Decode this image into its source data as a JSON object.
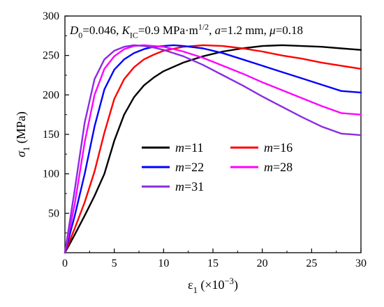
{
  "chart_data": {
    "type": "line",
    "annotation": {
      "parts": [
        {
          "t": "D",
          "style": "italic"
        },
        {
          "t": "0",
          "style": "sub"
        },
        {
          "t": "=0.046, ",
          "style": "normal"
        },
        {
          "t": "K",
          "style": "italic"
        },
        {
          "t": "IC",
          "style": "sub"
        },
        {
          "t": "=0.9 MPa·m",
          "style": "normal"
        },
        {
          "t": "1/2",
          "style": "sup"
        },
        {
          "t": ", ",
          "style": "normal"
        },
        {
          "t": "a",
          "style": "italic"
        },
        {
          "t": "=1.2 mm, ",
          "style": "normal"
        },
        {
          "t": "μ",
          "style": "italic"
        },
        {
          "t": "=0.18",
          "style": "normal"
        }
      ]
    },
    "xlabel": {
      "parts": [
        {
          "t": "ε",
          "style": "normal"
        },
        {
          "t": "1",
          "style": "sub"
        },
        {
          "t": " (×10",
          "style": "normal"
        },
        {
          "t": "−3",
          "style": "sup"
        },
        {
          "t": ")",
          "style": "normal"
        }
      ]
    },
    "ylabel": {
      "parts": [
        {
          "t": "σ",
          "style": "italic"
        },
        {
          "t": "1",
          "style": "sub"
        },
        {
          "t": " (MPa)",
          "style": "normal"
        }
      ]
    },
    "xlim": [
      0,
      30
    ],
    "ylim": [
      0,
      300
    ],
    "xticks": [
      0,
      5,
      10,
      15,
      20,
      25,
      30
    ],
    "yticks": [
      50,
      100,
      150,
      200,
      250,
      300
    ],
    "grid": false,
    "legend_position": "center",
    "series": [
      {
        "name": "m=11",
        "var": "m",
        "val": "=11",
        "color": "#000000",
        "points": [
          [
            0,
            0
          ],
          [
            1,
            23
          ],
          [
            2,
            47
          ],
          [
            3,
            72
          ],
          [
            4,
            100
          ],
          [
            5,
            142
          ],
          [
            6,
            175
          ],
          [
            7,
            197
          ],
          [
            8,
            212
          ],
          [
            9,
            222
          ],
          [
            10,
            230
          ],
          [
            12,
            241
          ],
          [
            14,
            249
          ],
          [
            16,
            255
          ],
          [
            18,
            259
          ],
          [
            20,
            262
          ],
          [
            22,
            263
          ],
          [
            24,
            262
          ],
          [
            26,
            261
          ],
          [
            28,
            259
          ],
          [
            30,
            257
          ]
        ]
      },
      {
        "name": "m=16",
        "var": "m",
        "val": "=16",
        "color": "#ff0000",
        "points": [
          [
            0,
            0
          ],
          [
            1,
            31
          ],
          [
            2,
            64
          ],
          [
            3,
            103
          ],
          [
            4,
            152
          ],
          [
            5,
            195
          ],
          [
            6,
            220
          ],
          [
            7,
            235
          ],
          [
            8,
            245
          ],
          [
            9,
            251
          ],
          [
            10,
            256
          ],
          [
            12,
            261
          ],
          [
            14,
            263
          ],
          [
            16,
            262
          ],
          [
            18,
            259
          ],
          [
            20,
            255
          ],
          [
            22,
            250
          ],
          [
            24,
            246
          ],
          [
            26,
            241
          ],
          [
            28,
            237
          ],
          [
            30,
            233
          ]
        ]
      },
      {
        "name": "m=22",
        "var": "m",
        "val": "=22",
        "color": "#0000ff",
        "points": [
          [
            0,
            0
          ],
          [
            1,
            47
          ],
          [
            2,
            100
          ],
          [
            3,
            160
          ],
          [
            4,
            207
          ],
          [
            5,
            232
          ],
          [
            6,
            245
          ],
          [
            7,
            253
          ],
          [
            8,
            258
          ],
          [
            9,
            261
          ],
          [
            10,
            262
          ],
          [
            11,
            263
          ],
          [
            12,
            262
          ],
          [
            14,
            259
          ],
          [
            16,
            253
          ],
          [
            18,
            245
          ],
          [
            20,
            237
          ],
          [
            22,
            229
          ],
          [
            24,
            221
          ],
          [
            26,
            213
          ],
          [
            28,
            205
          ],
          [
            30,
            203
          ]
        ]
      },
      {
        "name": "m=28",
        "var": "m",
        "val": "=28",
        "color": "#ff00ff",
        "points": [
          [
            0,
            0
          ],
          [
            1,
            62
          ],
          [
            2,
            140
          ],
          [
            3,
            200
          ],
          [
            4,
            233
          ],
          [
            5,
            249
          ],
          [
            6,
            258
          ],
          [
            7,
            262
          ],
          [
            8,
            263
          ],
          [
            9,
            262
          ],
          [
            10,
            261
          ],
          [
            12,
            255
          ],
          [
            14,
            247
          ],
          [
            16,
            237
          ],
          [
            18,
            227
          ],
          [
            20,
            216
          ],
          [
            22,
            206
          ],
          [
            24,
            196
          ],
          [
            26,
            186
          ],
          [
            28,
            177
          ],
          [
            30,
            175
          ]
        ]
      },
      {
        "name": "m=31",
        "var": "m",
        "val": "=31",
        "color": "#8a2be2",
        "points": [
          [
            0,
            0
          ],
          [
            1,
            80
          ],
          [
            2,
            165
          ],
          [
            3,
            220
          ],
          [
            4,
            245
          ],
          [
            5,
            256
          ],
          [
            6,
            261
          ],
          [
            7,
            263
          ],
          [
            8,
            262
          ],
          [
            9,
            260
          ],
          [
            10,
            257
          ],
          [
            12,
            249
          ],
          [
            14,
            238
          ],
          [
            16,
            225
          ],
          [
            18,
            212
          ],
          [
            20,
            198
          ],
          [
            22,
            185
          ],
          [
            24,
            172
          ],
          [
            26,
            160
          ],
          [
            28,
            151
          ],
          [
            30,
            149
          ]
        ]
      }
    ]
  }
}
